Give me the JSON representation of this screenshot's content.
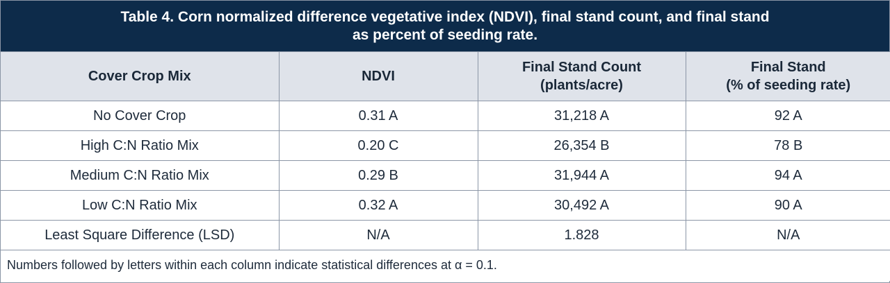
{
  "table": {
    "title_line1": "Table 4. Corn normalized difference vegetative index (NDVI), final stand count, and final stand",
    "title_line2": "as percent of seeding rate.",
    "headers": [
      {
        "line1": "Cover Crop Mix",
        "line2": ""
      },
      {
        "line1": "NDVI",
        "line2": ""
      },
      {
        "line1": "Final Stand Count",
        "line2": "(plants/acre)"
      },
      {
        "line1": "Final Stand",
        "line2": "(% of seeding rate)"
      }
    ],
    "rows": [
      [
        "No Cover Crop",
        "0.31 A",
        "31,218 A",
        "92 A"
      ],
      [
        "High C:N Ratio Mix",
        "0.20 C",
        "26,354 B",
        "78 B"
      ],
      [
        "Medium C:N Ratio Mix",
        "0.29 B",
        "31,944 A",
        "94 A"
      ],
      [
        "Low C:N Ratio Mix",
        "0.32 A",
        "30,492 A",
        "90 A"
      ],
      [
        "Least Square Difference (LSD)",
        "N/A",
        "1.828",
        "N/A"
      ]
    ],
    "footnote": "Numbers followed by letters within each column indicate statistical differences at α = 0.1."
  },
  "colors": {
    "title_bg": "#0d2b4a",
    "header_bg": "#dfe3ea",
    "border": "#8b96a6"
  }
}
